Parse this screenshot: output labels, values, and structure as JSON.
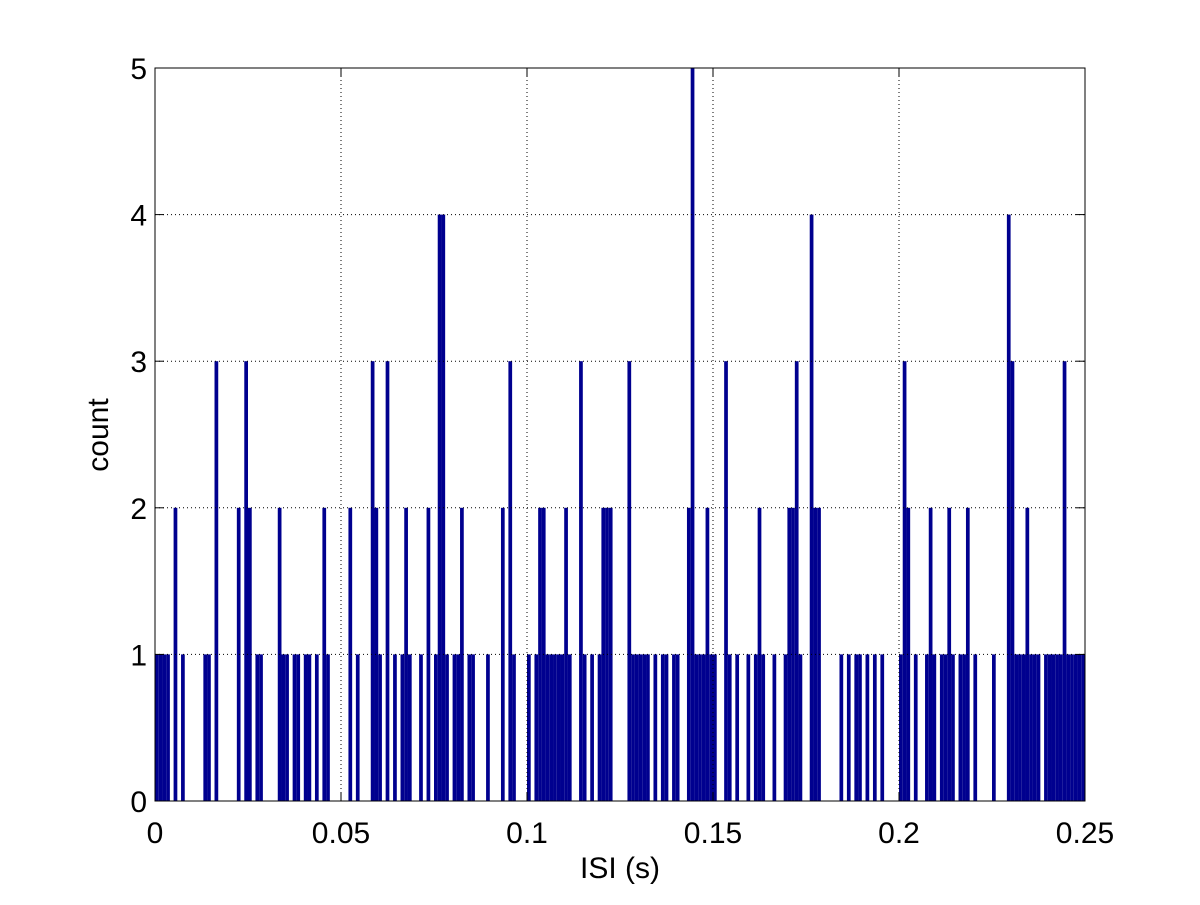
{
  "chart_data": {
    "type": "histogram",
    "xlabel": "ISI (s)",
    "ylabel": "count",
    "color": "#00008f",
    "grid": true,
    "xlim": [
      0,
      0.25
    ],
    "xticks": [
      0,
      0.05,
      0.1,
      0.15,
      0.2,
      0.25
    ],
    "ylim": [
      0,
      5
    ],
    "yticks": [
      0,
      1,
      2,
      3,
      4,
      5
    ],
    "bins": [
      0,
      0.001,
      0.002,
      0.003,
      0.004,
      0.005,
      0.006,
      0.007,
      0.008,
      0.009,
      0.01,
      0.011,
      0.012,
      0.013,
      0.014,
      0.015,
      0.016,
      0.017,
      0.018,
      0.019,
      0.02,
      0.021,
      0.022,
      0.023,
      0.024,
      0.025,
      0.026,
      0.027,
      0.028,
      0.029,
      0.03,
      0.031,
      0.032,
      0.033,
      0.034,
      0.035,
      0.036,
      0.037,
      0.038,
      0.039,
      0.04,
      0.041,
      0.042,
      0.043,
      0.044,
      0.045,
      0.046,
      0.047,
      0.048,
      0.049,
      0.05,
      0.051,
      0.052,
      0.053,
      0.054,
      0.055,
      0.056,
      0.057,
      0.058,
      0.059,
      0.06,
      0.061,
      0.062,
      0.063,
      0.064,
      0.065,
      0.066,
      0.067,
      0.068,
      0.069,
      0.07,
      0.071,
      0.072,
      0.073,
      0.074,
      0.075,
      0.076,
      0.077,
      0.078,
      0.079,
      0.08,
      0.081,
      0.082,
      0.083,
      0.084,
      0.085,
      0.086,
      0.087,
      0.088,
      0.089,
      0.09,
      0.091,
      0.092,
      0.093,
      0.094,
      0.095,
      0.096,
      0.097,
      0.098,
      0.099,
      0.1,
      0.101,
      0.102,
      0.103,
      0.104,
      0.105,
      0.106,
      0.107,
      0.108,
      0.109,
      0.11,
      0.111,
      0.112,
      0.113,
      0.114,
      0.115,
      0.116,
      0.117,
      0.118,
      0.119,
      0.12,
      0.121,
      0.122,
      0.123,
      0.124,
      0.125,
      0.126,
      0.127,
      0.128,
      0.129,
      0.13,
      0.131,
      0.132,
      0.133,
      0.134,
      0.135,
      0.136,
      0.137,
      0.138,
      0.139,
      0.14,
      0.141,
      0.142,
      0.143,
      0.144,
      0.145,
      0.146,
      0.147,
      0.148,
      0.149,
      0.15,
      0.151,
      0.152,
      0.153,
      0.154,
      0.155,
      0.156,
      0.157,
      0.158,
      0.159,
      0.16,
      0.161,
      0.162,
      0.163,
      0.164,
      0.165,
      0.166,
      0.167,
      0.168,
      0.169,
      0.17,
      0.171,
      0.172,
      0.173,
      0.174,
      0.175,
      0.176,
      0.177,
      0.178,
      0.179,
      0.18,
      0.181,
      0.182,
      0.183,
      0.184,
      0.185,
      0.186,
      0.187,
      0.188,
      0.189,
      0.19,
      0.191,
      0.192,
      0.193,
      0.194,
      0.195,
      0.196,
      0.197,
      0.198,
      0.199,
      0.2,
      0.201,
      0.202,
      0.203,
      0.204,
      0.205,
      0.206,
      0.207,
      0.208,
      0.209,
      0.21,
      0.211,
      0.212,
      0.213,
      0.214,
      0.215,
      0.216,
      0.217,
      0.218,
      0.219,
      0.22,
      0.221,
      0.222,
      0.223,
      0.224,
      0.225,
      0.226,
      0.227,
      0.228,
      0.229,
      0.23,
      0.231,
      0.232,
      0.233,
      0.234,
      0.235,
      0.236,
      0.237,
      0.238,
      0.239,
      0.24,
      0.241,
      0.242,
      0.243,
      0.244,
      0.245,
      0.246,
      0.247,
      0.248,
      0.249,
      0.25
    ],
    "counts": [
      1,
      1,
      1,
      1,
      0,
      2,
      0,
      1,
      0,
      0,
      0,
      0,
      0,
      1,
      1,
      0,
      3,
      0,
      0,
      0,
      0,
      0,
      2,
      0,
      3,
      2,
      0,
      1,
      1,
      0,
      0,
      0,
      0,
      2,
      1,
      1,
      0,
      1,
      1,
      0,
      1,
      1,
      0,
      1,
      0,
      2,
      1,
      0,
      0,
      0,
      0,
      0,
      2,
      0,
      1,
      0,
      0,
      0,
      3,
      2,
      1,
      0,
      3,
      0,
      1,
      0,
      1,
      2,
      1,
      0,
      0,
      1,
      0,
      2,
      0,
      1,
      4,
      4,
      1,
      0,
      1,
      1,
      2,
      0,
      1,
      1,
      0,
      0,
      0,
      1,
      0,
      0,
      0,
      2,
      0,
      3,
      1,
      0,
      0,
      0,
      1,
      0,
      1,
      2,
      2,
      1,
      1,
      1,
      1,
      1,
      2,
      1,
      0,
      0,
      3,
      1,
      0,
      1,
      0,
      1,
      2,
      2,
      2,
      0,
      0,
      0,
      0,
      3,
      1,
      1,
      1,
      1,
      1,
      0,
      1,
      0,
      1,
      1,
      0,
      1,
      1,
      0,
      0,
      2,
      5,
      1,
      1,
      1,
      2,
      1,
      1,
      0,
      0,
      3,
      1,
      0,
      1,
      0,
      0,
      1,
      0,
      1,
      2,
      1,
      0,
      0,
      1,
      0,
      0,
      1,
      2,
      2,
      3,
      1,
      0,
      0,
      4,
      2,
      2,
      0,
      0,
      0,
      0,
      0,
      1,
      0,
      1,
      0,
      1,
      1,
      0,
      1,
      0,
      1,
      0,
      1,
      0,
      0,
      0,
      0,
      1,
      3,
      2,
      0,
      1,
      0,
      0,
      1,
      2,
      1,
      0,
      1,
      1,
      2,
      1,
      0,
      1,
      1,
      2,
      0,
      1,
      0,
      0,
      0,
      0,
      1,
      0,
      0,
      0,
      4,
      3,
      1,
      1,
      1,
      2,
      1,
      1,
      1,
      0,
      1,
      1,
      1,
      1,
      1,
      3,
      1,
      1,
      1,
      1,
      1
    ]
  }
}
